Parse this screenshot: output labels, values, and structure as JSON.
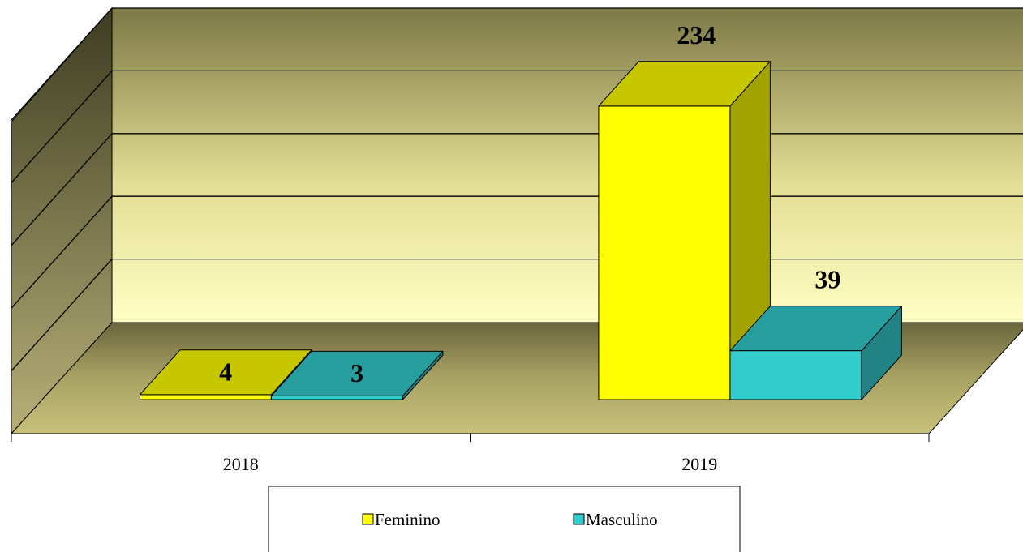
{
  "chart_data": {
    "type": "bar3d",
    "categories": [
      "2018",
      "2019"
    ],
    "series": [
      {
        "name": "Feminino",
        "color": "#ffff00",
        "values": [
          4,
          234
        ]
      },
      {
        "name": "Masculino",
        "color": "#33cccc",
        "values": [
          3,
          39
        ]
      }
    ],
    "ylim": [
      0,
      250
    ],
    "yticks": [
      0,
      50,
      100,
      150,
      200,
      250
    ],
    "grid": true,
    "legend": "bottom"
  }
}
